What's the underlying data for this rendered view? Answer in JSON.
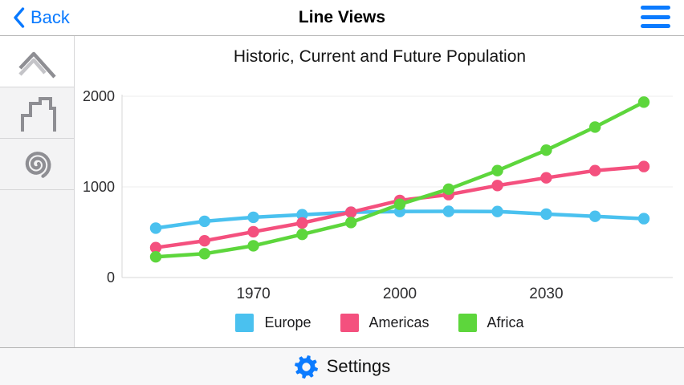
{
  "nav": {
    "back_label": "Back",
    "title": "Line Views"
  },
  "toolbar": {
    "settings_label": "Settings"
  },
  "sidebar": {
    "items": [
      {
        "name": "line-series",
        "selected": true
      },
      {
        "name": "step-series",
        "selected": false
      },
      {
        "name": "spiral-series",
        "selected": false
      }
    ]
  },
  "icons": {
    "back": "chevron-left-icon",
    "menu": "hamburger-menu-icon",
    "settings": "gear-icon",
    "sidebar": [
      "line-series-icon",
      "step-series-icon",
      "spiral-series-icon"
    ]
  },
  "colors": {
    "accent_blue": "#0b7bff",
    "europe": "#4AC1EF",
    "americas": "#F4507E",
    "africa": "#5DD63C"
  },
  "chart_data": {
    "type": "line",
    "title": "Historic, Current and Future Population",
    "x": [
      1950,
      1960,
      1970,
      1980,
      1990,
      2000,
      2010,
      2020,
      2030,
      2040,
      2050
    ],
    "series": [
      {
        "name": "Europe",
        "color": "#4AC1EF",
        "values": [
          545,
          620,
          665,
          693,
          720,
          728,
          730,
          728,
          700,
          675,
          650
        ]
      },
      {
        "name": "Americas",
        "color": "#F4507E",
        "values": [
          330,
          405,
          505,
          602,
          720,
          850,
          915,
          1015,
          1100,
          1180,
          1225
        ]
      },
      {
        "name": "Africa",
        "color": "#5DD63C",
        "values": [
          228,
          263,
          350,
          476,
          607,
          808,
          975,
          1180,
          1405,
          1660,
          1935
        ]
      }
    ],
    "x_ticks": [
      1970,
      2000,
      2030
    ],
    "y_ticks": [
      0,
      1000,
      2000
    ],
    "xlim": [
      1950,
      2050
    ],
    "ylim": [
      0,
      2000
    ],
    "grid": true,
    "legend_position": "bottom"
  }
}
